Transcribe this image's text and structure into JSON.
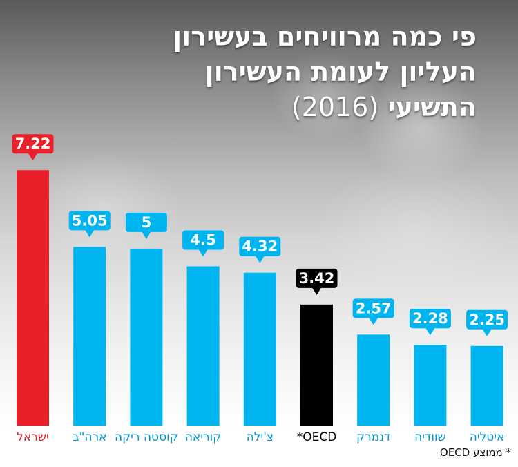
{
  "title": {
    "line1": "פי כמה מרוויחים בעשירון",
    "line2": "העליון לעומת העשירון",
    "line3": "התשיעי",
    "year": "(2016)"
  },
  "footnote": "* ממוצע OECD",
  "colors": {
    "israel": "#e8202a",
    "oecd": "#000000",
    "default": "#00b4f0",
    "label_default": "#0097d6",
    "label_israel": "#e8202a",
    "label_oecd": "#000000"
  },
  "chart_data": {
    "type": "bar",
    "title": "פי כמה מרוויחים בעשירון העליון לעומת העשירון התשיעי (2016)",
    "categories": [
      "ישראל",
      "ארה\"ב",
      "קוסטה ריקה",
      "קוריאה",
      "צ'ילה",
      "OECD*",
      "דנמרק",
      "שוודיה",
      "איטליה"
    ],
    "values": [
      7.22,
      5.05,
      5,
      4.5,
      4.32,
      3.42,
      2.57,
      2.28,
      2.25
    ],
    "value_labels": [
      "7.22",
      "5.05",
      "5",
      "4.5",
      "4.32",
      "3.42",
      "2.57",
      "2.28",
      "2.25"
    ],
    "highlight": [
      "israel",
      "default",
      "default",
      "default",
      "default",
      "oecd",
      "default",
      "default",
      "default"
    ],
    "ylim": [
      0,
      8.2
    ],
    "grid": false,
    "legend": "none"
  }
}
